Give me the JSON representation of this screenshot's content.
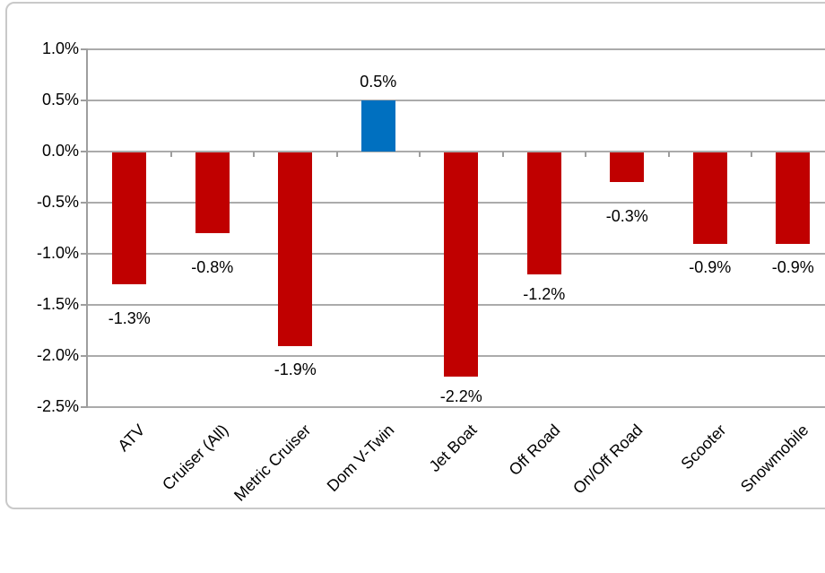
{
  "chart_data": {
    "type": "bar",
    "title": "",
    "xlabel": "",
    "ylabel": "",
    "categories": [
      "ATV",
      "Cruiser (All)",
      "Metric Cruiser",
      "Dom V-Twin",
      "Jet Boat",
      "Off Road",
      "On/Off Road",
      "Scooter",
      "Snowmobile"
    ],
    "values": [
      -1.3,
      -0.8,
      -1.9,
      0.5,
      -2.2,
      -1.2,
      -0.3,
      -0.9,
      -0.9
    ],
    "value_labels": [
      "-1.3%",
      "-0.8%",
      "-1.9%",
      "0.5%",
      "-2.2%",
      "-1.2%",
      "-0.3%",
      "-0.9%",
      "-0.9%"
    ],
    "ylim": [
      -2.5,
      1.0
    ],
    "ytick_step": 0.5,
    "ytick_labels": [
      "1.0%",
      "0.5%",
      "0.0%",
      "-0.5%",
      "-1.0%",
      "-1.5%",
      "-2.0%",
      "-2.5%"
    ],
    "grid": true,
    "legend": false,
    "x_labels_rotation_deg": -45,
    "colors": {
      "positive": "#0070C0",
      "negative": "#C00000",
      "gridline": "#ABABAB",
      "axis": "#9E9E9E",
      "frame_border": "#C9C9C9",
      "background": "#FFFFFF",
      "label_text": "#000000"
    }
  }
}
